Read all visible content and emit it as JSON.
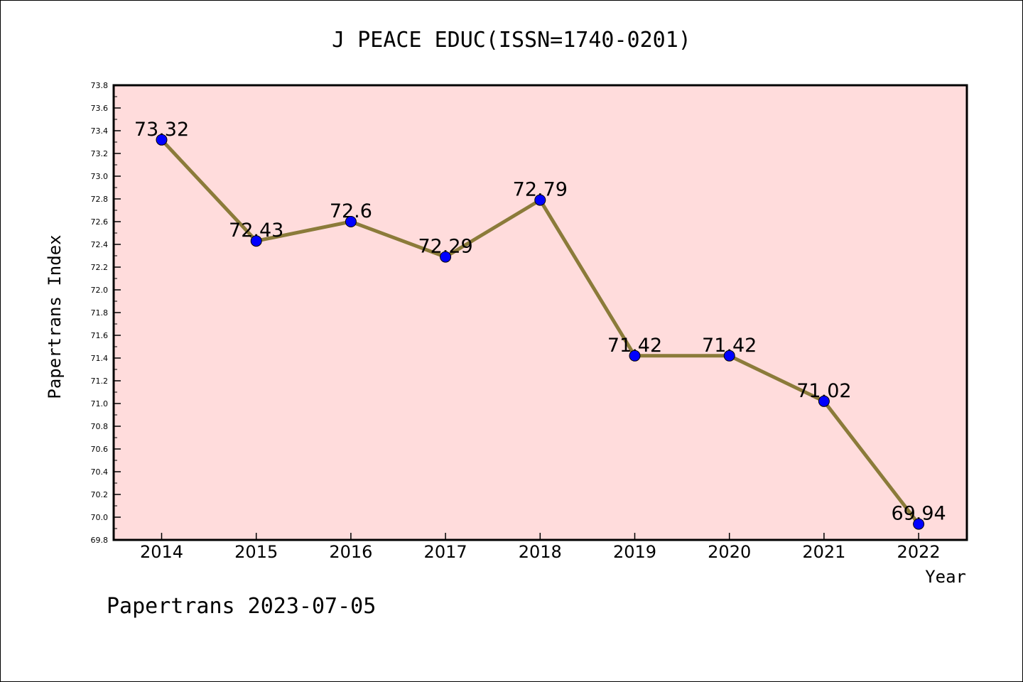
{
  "chart_data": {
    "type": "line",
    "title": "J PEACE EDUC(ISSN=1740-0201)",
    "xlabel": "Year",
    "ylabel": "Papertrans Index",
    "footer": "Papertrans 2023-07-05",
    "categories": [
      "2014",
      "2015",
      "2016",
      "2017",
      "2018",
      "2019",
      "2020",
      "2021",
      "2022"
    ],
    "values": [
      73.32,
      72.43,
      72.6,
      72.29,
      72.79,
      71.42,
      71.42,
      71.02,
      69.94
    ],
    "data_labels": [
      "73.32",
      "72.43",
      "72.6",
      "72.29",
      "72.79",
      "71.42",
      "71.42",
      "71.02",
      "69.94"
    ],
    "ylim": [
      69.8,
      73.8
    ],
    "y_ticks": [
      "69.8",
      "70.0",
      "70.2",
      "70.4",
      "70.6",
      "70.8",
      "71.0",
      "71.2",
      "71.4",
      "71.6",
      "71.8",
      "72.0",
      "72.2",
      "72.4",
      "72.6",
      "72.8",
      "73.0",
      "73.2",
      "73.4",
      "73.6",
      "73.8"
    ],
    "grid": false,
    "colors": {
      "plot_background": "#FFDCDC",
      "line": "#8B7B3A",
      "marker": "#0000FF",
      "axis": "#000000"
    }
  }
}
